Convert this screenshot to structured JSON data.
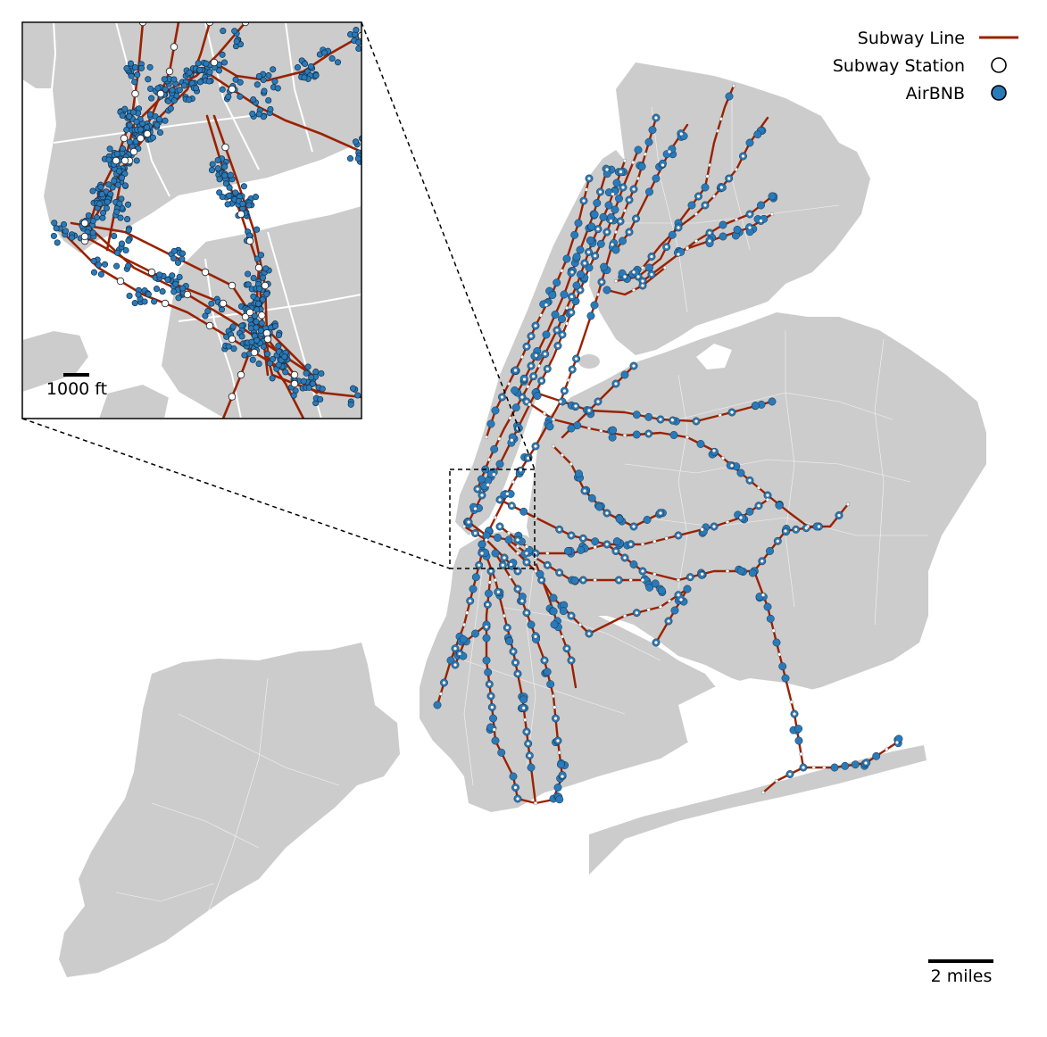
{
  "map": {
    "colors": {
      "land": "#cccccc",
      "borders": "#ffffff",
      "subway_line": "#992200",
      "station_fill": "#ffffff",
      "airbnb_fill": "#2a7ab9",
      "airbnb_stroke": "#12314a",
      "background": "#ffffff"
    },
    "legend": {
      "subway_line": "Subway Line",
      "subway_station": "Subway Station",
      "airbnb": "AirBNB",
      "placement": "top-right"
    },
    "scale_bar_main": {
      "label": "2 miles"
    },
    "scale_bar_inset": {
      "label": "1000 ft"
    },
    "inset": {
      "frame_style": "solid",
      "zoom_box_style": "dashed"
    }
  }
}
